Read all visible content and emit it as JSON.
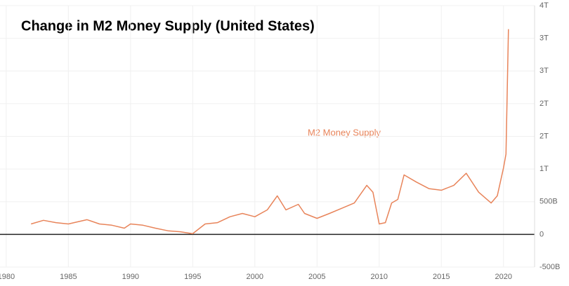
{
  "chart_data": {
    "type": "line",
    "title": "Change in M2 Money Supply (United States)",
    "annotation": "M2 Money Supply",
    "x": [
      1982,
      1983,
      1984,
      1985,
      1986.5,
      1987.5,
      1988.5,
      1989.5,
      1990,
      1991,
      1992,
      1993,
      1994,
      1995,
      1996,
      1997,
      1998,
      1999,
      2000,
      2001,
      2001.8,
      2002.5,
      2003.5,
      2004,
      2005,
      2006,
      2007,
      2008,
      2009,
      2009.5,
      2010,
      2010.5,
      2011,
      2011.5,
      2012,
      2013,
      2014,
      2015,
      2016,
      2017,
      2018,
      2019,
      2019.5,
      2020,
      2020.2,
      2020.4
    ],
    "series": [
      {
        "name": "M2 Money Supply",
        "color": "#e8845a",
        "values": [
          160,
          215,
          180,
          160,
          225,
          160,
          140,
          95,
          160,
          140,
          95,
          55,
          40,
          10,
          160,
          180,
          270,
          320,
          270,
          375,
          590,
          375,
          460,
          320,
          245,
          320,
          400,
          480,
          750,
          645,
          160,
          180,
          480,
          535,
          910,
          800,
          700,
          675,
          750,
          935,
          645,
          480,
          590,
          1020,
          1230,
          3140
        ]
      }
    ],
    "xlim": [
      1979.5,
      2022.5
    ],
    "xticks": [
      1980,
      1985,
      1990,
      1995,
      2000,
      2005,
      2010,
      2015,
      2020
    ],
    "ylim": [
      -500,
      3500
    ],
    "yticks": [
      {
        "value": -500,
        "label": "-500B"
      },
      0,
      {
        "value": 500,
        "label": "500B"
      },
      {
        "value": 1000,
        "label": "1T"
      },
      {
        "value": 1500,
        "label": "2T"
      },
      {
        "value": 2000,
        "label": "2T"
      },
      {
        "value": 2500,
        "label": "3T"
      },
      {
        "value": 3000,
        "label": "3T"
      },
      {
        "value": 3500,
        "label": "4T"
      }
    ],
    "grid": true
  }
}
